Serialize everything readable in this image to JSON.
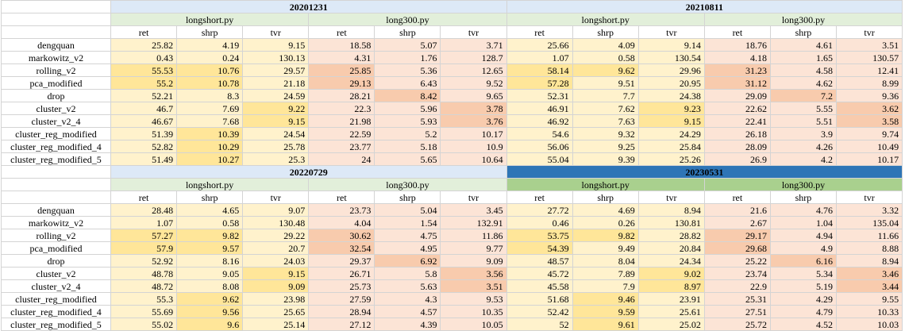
{
  "blocks": [
    {
      "col_groups": [
        {
          "date": "20201231",
          "scripts": [
            "longshort.py",
            "long300.py"
          ],
          "dark": false
        },
        {
          "date": "20210811",
          "scripts": [
            "longshort.py",
            "long300.py"
          ],
          "dark": false
        }
      ],
      "metrics": [
        "ret",
        "shrp",
        "tvr"
      ],
      "rows": [
        {
          "name": "dengquan",
          "v": [
            "25.82",
            "4.19",
            "9.15",
            "18.58",
            "5.07",
            "3.71",
            "25.66",
            "4.09",
            "9.14",
            "18.76",
            "4.61",
            "3.51"
          ]
        },
        {
          "name": "markowitz_v2",
          "v": [
            "0.43",
            "0.24",
            "130.13",
            "4.31",
            "1.76",
            "128.7",
            "1.07",
            "0.58",
            "130.54",
            "4.18",
            "1.65",
            "130.57"
          ]
        },
        {
          "name": "rolling_v2",
          "v": [
            "55.53",
            "10.76",
            "29.57",
            "25.85",
            "5.36",
            "12.65",
            "58.14",
            "9.62",
            "29.96",
            "31.23",
            "4.58",
            "12.41"
          ]
        },
        {
          "name": "pca_modified",
          "v": [
            "55.2",
            "10.78",
            "21.18",
            "29.13",
            "6.43",
            "9.52",
            "57.28",
            "9.51",
            "20.95",
            "31.12",
            "4.62",
            "8.99"
          ]
        },
        {
          "name": "drop",
          "v": [
            "52.21",
            "8.3",
            "24.59",
            "28.21",
            "8.42",
            "9.65",
            "52.31",
            "7.7",
            "24.38",
            "29.09",
            "7.2",
            "9.36"
          ]
        },
        {
          "name": "cluster_v2",
          "v": [
            "46.7",
            "7.69",
            "9.22",
            "22.3",
            "5.96",
            "3.78",
            "46.91",
            "7.62",
            "9.23",
            "22.62",
            "5.55",
            "3.62"
          ]
        },
        {
          "name": "cluster_v2_4",
          "v": [
            "46.67",
            "7.68",
            "9.15",
            "21.98",
            "5.93",
            "3.76",
            "46.92",
            "7.63",
            "9.15",
            "22.41",
            "5.51",
            "3.58"
          ]
        },
        {
          "name": "cluster_reg_modified",
          "v": [
            "51.39",
            "10.39",
            "24.54",
            "22.59",
            "5.2",
            "10.17",
            "54.6",
            "9.32",
            "24.29",
            "26.18",
            "3.9",
            "9.74"
          ]
        },
        {
          "name": "cluster_reg_modified_4",
          "v": [
            "52.82",
            "10.29",
            "25.78",
            "23.77",
            "5.18",
            "10.9",
            "56.06",
            "9.25",
            "25.84",
            "28.09",
            "4.26",
            "10.49"
          ]
        },
        {
          "name": "cluster_reg_modified_5",
          "v": [
            "51.49",
            "10.27",
            "25.3",
            "24",
            "5.65",
            "10.64",
            "55.04",
            "9.39",
            "25.26",
            "26.9",
            "4.2",
            "10.17"
          ]
        }
      ]
    },
    {
      "col_groups": [
        {
          "date": "20220729",
          "scripts": [
            "longshort.py",
            "long300.py"
          ],
          "dark": false
        },
        {
          "date": "20230531",
          "scripts": [
            "longshort.py",
            "long300.py"
          ],
          "dark": true
        }
      ],
      "metrics": [
        "ret",
        "shrp",
        "tvr"
      ],
      "rows": [
        {
          "name": "dengquan",
          "v": [
            "28.48",
            "4.65",
            "9.07",
            "23.73",
            "5.04",
            "3.45",
            "27.72",
            "4.69",
            "8.94",
            "21.6",
            "4.76",
            "3.32"
          ]
        },
        {
          "name": "markowitz_v2",
          "v": [
            "1.07",
            "0.58",
            "130.48",
            "4.04",
            "1.54",
            "132.91",
            "0.46",
            "0.26",
            "130.81",
            "2.67",
            "1.04",
            "135.04"
          ]
        },
        {
          "name": "rolling_v2",
          "v": [
            "57.27",
            "9.82",
            "29.22",
            "30.62",
            "4.75",
            "11.86",
            "53.75",
            "9.82",
            "28.82",
            "29.17",
            "4.94",
            "11.66"
          ]
        },
        {
          "name": "pca_modified",
          "v": [
            "57.9",
            "9.57",
            "20.7",
            "32.54",
            "4.95",
            "9.77",
            "54.39",
            "9.49",
            "20.84",
            "29.68",
            "4.9",
            "8.88"
          ]
        },
        {
          "name": "drop",
          "v": [
            "52.92",
            "8.16",
            "24.03",
            "29.37",
            "6.92",
            "9.09",
            "48.57",
            "8.04",
            "24.34",
            "25.22",
            "6.16",
            "8.94"
          ]
        },
        {
          "name": "cluster_v2",
          "v": [
            "48.78",
            "9.05",
            "9.15",
            "26.71",
            "5.8",
            "3.56",
            "45.72",
            "7.89",
            "9.02",
            "23.74",
            "5.34",
            "3.46"
          ]
        },
        {
          "name": "cluster_v2_4",
          "v": [
            "48.72",
            "8.08",
            "9.09",
            "25.73",
            "5.63",
            "3.51",
            "45.58",
            "7.9",
            "8.97",
            "22.9",
            "5.19",
            "3.44"
          ]
        },
        {
          "name": "cluster_reg_modified",
          "v": [
            "55.3",
            "9.62",
            "23.98",
            "27.59",
            "4.3",
            "9.53",
            "51.68",
            "9.46",
            "23.91",
            "25.31",
            "4.29",
            "9.55"
          ]
        },
        {
          "name": "cluster_reg_modified_4",
          "v": [
            "55.69",
            "9.56",
            "25.65",
            "28.94",
            "4.57",
            "10.35",
            "52.42",
            "9.59",
            "25.61",
            "27.51",
            "4.79",
            "10.33"
          ]
        },
        {
          "name": "cluster_reg_modified_5",
          "v": [
            "55.02",
            "9.6",
            "25.14",
            "27.12",
            "4.39",
            "10.05",
            "52",
            "9.61",
            "25.02",
            "25.72",
            "4.52",
            "10.03"
          ]
        }
      ]
    }
  ],
  "highlights": {
    "base_long": "#fff2cc",
    "strong_long": "#ffe699",
    "base_short": "#fce4d6",
    "strong_short": "#f8cbad"
  }
}
